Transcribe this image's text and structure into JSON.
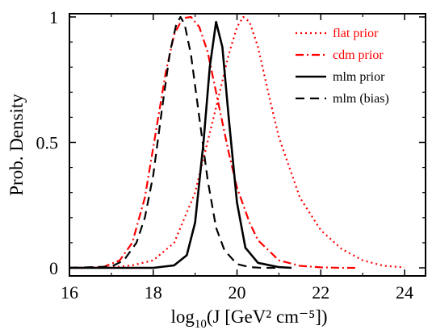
{
  "chart_data": {
    "type": "line",
    "xlabel": "log",
    "xlabel_sub": "10",
    "xlabel_rest": "(J [GeV² cm⁻⁵])",
    "ylabel": "Prob. Density",
    "xlim": [
      16,
      24.5
    ],
    "ylim": [
      0,
      1
    ],
    "x_ticks": [
      16,
      18,
      20,
      22,
      24
    ],
    "x_tick_labels": [
      "16",
      "18",
      "20",
      "22",
      "24"
    ],
    "y_ticks": [
      0,
      0.5,
      1
    ],
    "y_tick_labels": [
      "0",
      "0.5",
      "1"
    ],
    "legend_position": "top-right",
    "series": [
      {
        "name": "flat prior",
        "color": "#ff0000",
        "style": "dotted",
        "x": [
          16.0,
          17.0,
          17.5,
          18.0,
          18.5,
          19.0,
          19.5,
          19.8,
          20.0,
          20.15,
          20.3,
          20.5,
          20.8,
          21.0,
          21.5,
          22.0,
          22.5,
          23.0,
          23.5,
          24.0
        ],
        "y": [
          0.0,
          0.002,
          0.01,
          0.03,
          0.1,
          0.3,
          0.64,
          0.85,
          0.96,
          1.0,
          0.98,
          0.88,
          0.66,
          0.52,
          0.28,
          0.15,
          0.075,
          0.03,
          0.008,
          0.002
        ]
      },
      {
        "name": "cdm prior",
        "color": "#ff0000",
        "style": "dashdot",
        "x": [
          16.0,
          16.8,
          17.2,
          17.5,
          17.8,
          18.0,
          18.3,
          18.5,
          18.7,
          18.9,
          19.1,
          19.3,
          19.5,
          19.8,
          20.0,
          20.3,
          20.5,
          21.0,
          21.5,
          22.0,
          22.5,
          22.9
        ],
        "y": [
          0.0,
          0.003,
          0.03,
          0.1,
          0.28,
          0.48,
          0.78,
          0.93,
          0.995,
          1.0,
          0.96,
          0.86,
          0.7,
          0.46,
          0.32,
          0.18,
          0.11,
          0.03,
          0.008,
          0.002,
          0.0,
          0.0
        ]
      },
      {
        "name": "mlm prior",
        "color": "#000000",
        "style": "solid",
        "x": [
          16.0,
          18.0,
          18.5,
          18.8,
          19.0,
          19.2,
          19.35,
          19.5,
          19.65,
          19.8,
          20.0,
          20.2,
          20.5,
          21.0,
          21.3
        ],
        "y": [
          0.0,
          0.0,
          0.01,
          0.05,
          0.18,
          0.5,
          0.8,
          0.98,
          0.88,
          0.6,
          0.26,
          0.08,
          0.02,
          0.003,
          0.0
        ]
      },
      {
        "name": "mlm (bias)",
        "color": "#000000",
        "style": "dashed",
        "x": [
          16.0,
          17.0,
          17.3,
          17.6,
          17.8,
          18.0,
          18.2,
          18.4,
          18.55,
          18.65,
          18.75,
          18.9,
          19.1,
          19.3,
          19.5,
          19.7,
          20.0,
          20.3,
          20.6,
          21.0
        ],
        "y": [
          0.0,
          0.005,
          0.03,
          0.1,
          0.2,
          0.37,
          0.62,
          0.86,
          0.97,
          1.0,
          0.97,
          0.85,
          0.6,
          0.35,
          0.16,
          0.07,
          0.015,
          0.003,
          0.0,
          0.0
        ]
      }
    ]
  }
}
